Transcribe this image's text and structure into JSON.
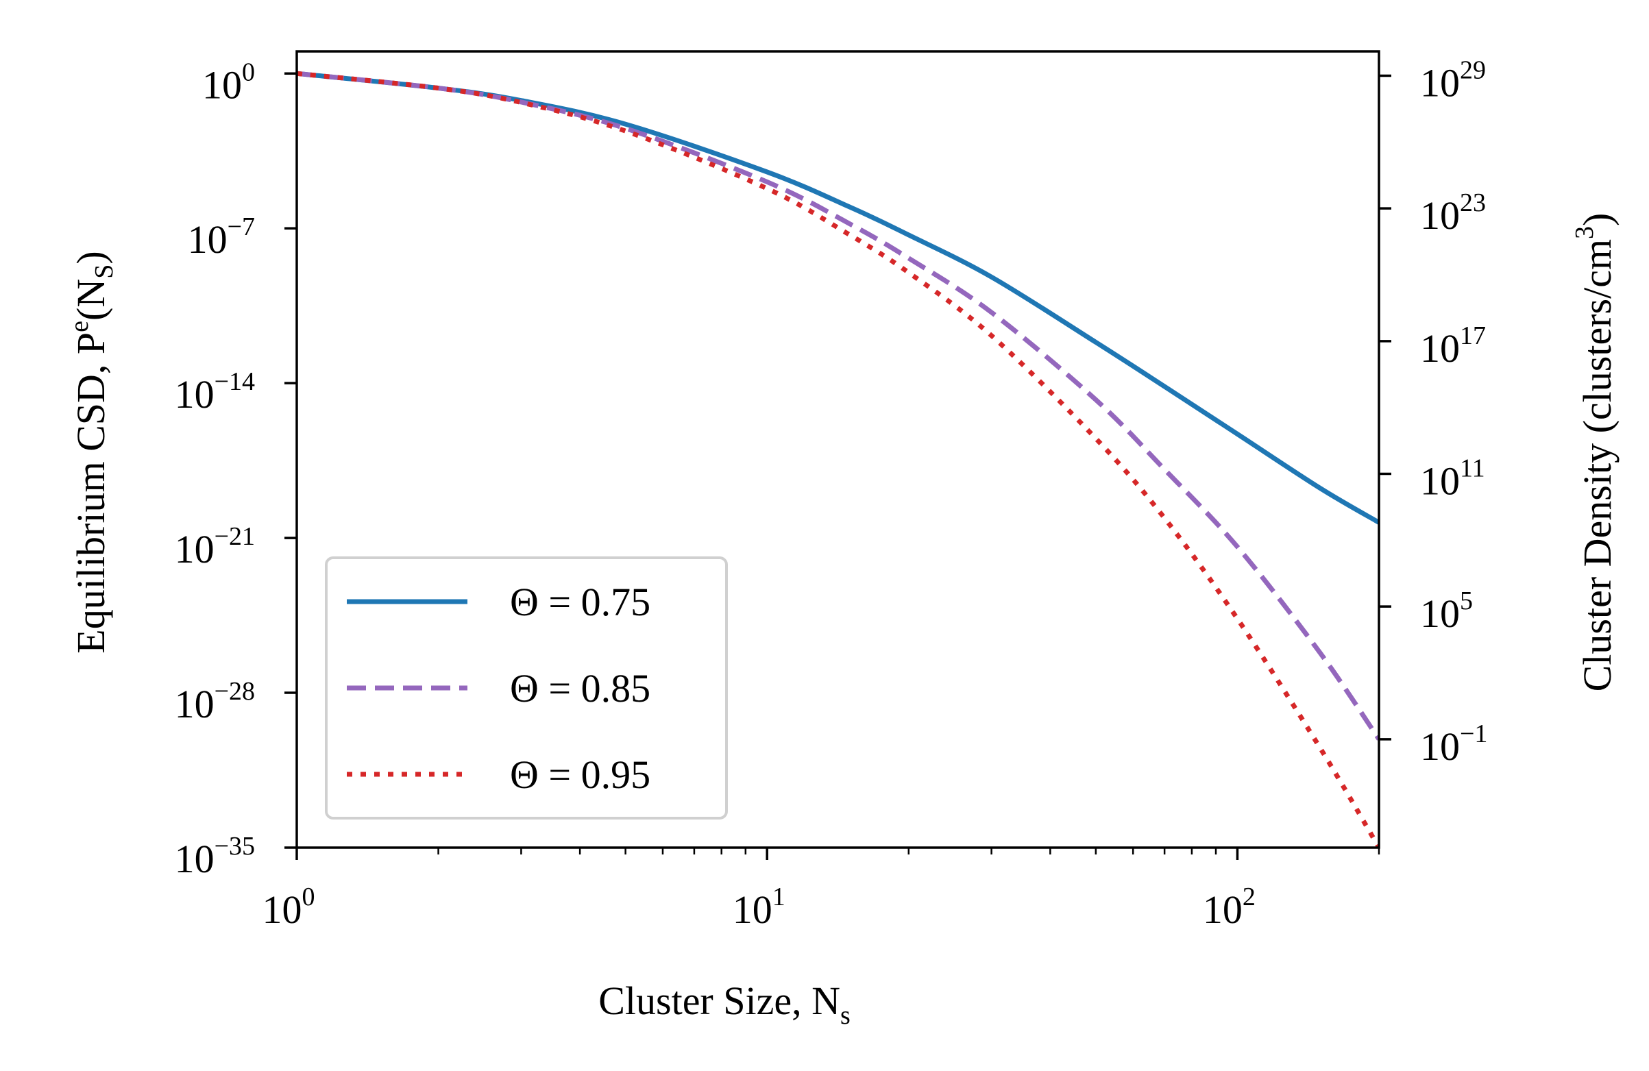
{
  "chart_data": {
    "type": "line",
    "title": "",
    "xlabel": "Cluster Size, N",
    "xlabel_sub": "s",
    "ylabel_parts": [
      "Equilibrium CSD, P",
      "e",
      "(N",
      "S",
      ")"
    ],
    "y2label_parts": [
      "Cluster Density (clusters/cm",
      "3",
      ")"
    ],
    "xscale": "log",
    "yscale": "log",
    "xlim": [
      1,
      200
    ],
    "ylim_log10": [
      -35,
      1
    ],
    "y2lim_log10": [
      -5.9,
      30.1
    ],
    "x_ticks": [
      {
        "value": 1,
        "base": "10",
        "exp": "0"
      },
      {
        "value": 10,
        "base": "10",
        "exp": "1"
      },
      {
        "value": 100,
        "base": "10",
        "exp": "2"
      }
    ],
    "y_ticks": [
      {
        "log10": 0,
        "base": "10",
        "exp": "0"
      },
      {
        "log10": -7,
        "base": "10",
        "exp": "−7"
      },
      {
        "log10": -14,
        "base": "10",
        "exp": "−14"
      },
      {
        "log10": -21,
        "base": "10",
        "exp": "−21"
      },
      {
        "log10": -28,
        "base": "10",
        "exp": "−28"
      },
      {
        "log10": -35,
        "base": "10",
        "exp": "−35"
      }
    ],
    "y2_ticks": [
      {
        "log10": 29,
        "base": "10",
        "exp": "29"
      },
      {
        "log10": 23,
        "base": "10",
        "exp": "23"
      },
      {
        "log10": 17,
        "base": "10",
        "exp": "17"
      },
      {
        "log10": 11,
        "base": "10",
        "exp": "11"
      },
      {
        "log10": 5,
        "base": "10",
        "exp": "5"
      },
      {
        "log10": -1,
        "base": "10",
        "exp": "−1"
      }
    ],
    "legend_position": "lower-left",
    "series": [
      {
        "name": "Θ = 0.75",
        "color": "#1f77b4",
        "style": "solid",
        "x": [
          1,
          2,
          3,
          5,
          10,
          15,
          20,
          30,
          50,
          70,
          100,
          150,
          200
        ],
        "y_log10": [
          0,
          -0.66,
          -1.22,
          -2.29,
          -4.45,
          -6.04,
          -7.3,
          -9.2,
          -12.15,
          -14.15,
          -16.3,
          -18.75,
          -20.3
        ]
      },
      {
        "name": "Θ = 0.85",
        "color": "#9467bd",
        "style": "dashed",
        "x": [
          1,
          2,
          3,
          5,
          10,
          15,
          20,
          30,
          50,
          70,
          100,
          150,
          200
        ],
        "y_log10": [
          0,
          -0.66,
          -1.29,
          -2.48,
          -4.9,
          -6.8,
          -8.35,
          -10.8,
          -14.75,
          -17.9,
          -21.4,
          -26.2,
          -30.1
        ]
      },
      {
        "name": "Θ = 0.95",
        "color": "#d62728",
        "style": "dotted",
        "x": [
          1,
          2,
          3,
          5,
          10,
          15,
          20,
          30,
          50,
          70,
          100,
          150,
          200
        ],
        "y_log10": [
          0,
          -0.66,
          -1.31,
          -2.6,
          -5.2,
          -7.3,
          -9.0,
          -11.85,
          -16.5,
          -20.1,
          -24.65,
          -30.5,
          -35.0
        ]
      }
    ]
  }
}
